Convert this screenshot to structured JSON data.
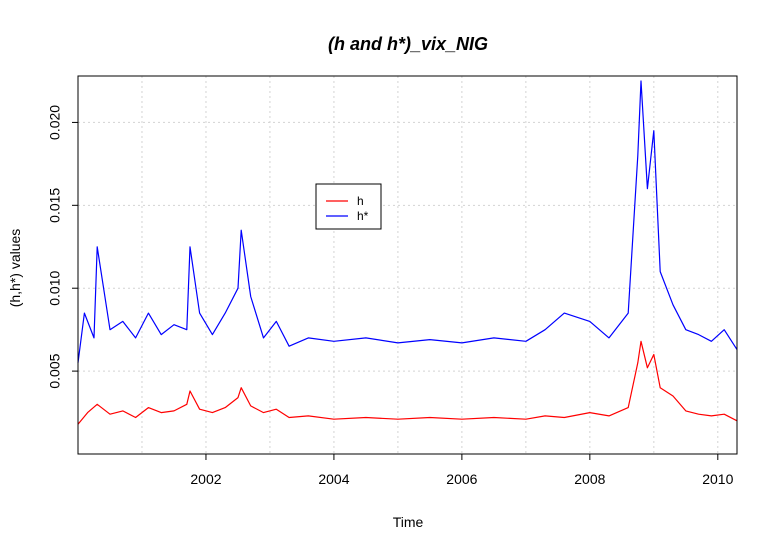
{
  "chart_data": {
    "type": "line",
    "title": "(h and h*)_vix_NIG",
    "xlabel": "Time",
    "ylabel": "(h,h*) values",
    "xlim": [
      2000.0,
      2010.3
    ],
    "ylim": [
      0.0,
      0.0228
    ],
    "x_ticks": [
      2002,
      2004,
      2006,
      2008,
      2010
    ],
    "y_ticks": [
      0.005,
      0.01,
      0.015,
      0.02
    ],
    "y_tick_labels": [
      "0.005",
      "0.010",
      "0.015",
      "0.020"
    ],
    "x_tick_labels": [
      "2002",
      "2004",
      "2006",
      "2008",
      "2010"
    ],
    "grid": true,
    "legend_position": "upper-left-center",
    "series": [
      {
        "name": "h",
        "color": "#ff0000",
        "x": [
          2000.0,
          2000.15,
          2000.3,
          2000.5,
          2000.7,
          2000.9,
          2001.1,
          2001.3,
          2001.5,
          2001.7,
          2001.75,
          2001.9,
          2002.1,
          2002.3,
          2002.5,
          2002.55,
          2002.7,
          2002.9,
          2003.1,
          2003.3,
          2003.6,
          2004.0,
          2004.5,
          2005.0,
          2005.5,
          2006.0,
          2006.5,
          2007.0,
          2007.3,
          2007.6,
          2008.0,
          2008.3,
          2008.6,
          2008.75,
          2008.8,
          2008.9,
          2009.0,
          2009.1,
          2009.3,
          2009.5,
          2009.7,
          2009.9,
          2010.1,
          2010.3
        ],
        "y": [
          0.0018,
          0.0025,
          0.003,
          0.0024,
          0.0026,
          0.0022,
          0.0028,
          0.0025,
          0.0026,
          0.003,
          0.0038,
          0.0027,
          0.0025,
          0.0028,
          0.0034,
          0.004,
          0.0029,
          0.0025,
          0.0027,
          0.0022,
          0.0023,
          0.0021,
          0.0022,
          0.0021,
          0.0022,
          0.0021,
          0.0022,
          0.0021,
          0.0023,
          0.0022,
          0.0025,
          0.0023,
          0.0028,
          0.0055,
          0.0068,
          0.0052,
          0.006,
          0.004,
          0.0035,
          0.0026,
          0.0024,
          0.0023,
          0.0024,
          0.002
        ]
      },
      {
        "name": "h*",
        "color": "#0000ff",
        "x": [
          2000.0,
          2000.1,
          2000.25,
          2000.3,
          2000.5,
          2000.7,
          2000.9,
          2001.1,
          2001.3,
          2001.5,
          2001.7,
          2001.75,
          2001.9,
          2002.1,
          2002.3,
          2002.5,
          2002.55,
          2002.7,
          2002.9,
          2003.1,
          2003.3,
          2003.6,
          2004.0,
          2004.5,
          2005.0,
          2005.5,
          2006.0,
          2006.5,
          2007.0,
          2007.3,
          2007.6,
          2008.0,
          2008.3,
          2008.6,
          2008.75,
          2008.8,
          2008.9,
          2009.0,
          2009.1,
          2009.3,
          2009.5,
          2009.7,
          2009.9,
          2010.1,
          2010.3
        ],
        "y": [
          0.0055,
          0.0085,
          0.007,
          0.0125,
          0.0075,
          0.008,
          0.007,
          0.0085,
          0.0072,
          0.0078,
          0.0075,
          0.0125,
          0.0085,
          0.0072,
          0.0085,
          0.01,
          0.0135,
          0.0095,
          0.007,
          0.008,
          0.0065,
          0.007,
          0.0068,
          0.007,
          0.0067,
          0.0069,
          0.0067,
          0.007,
          0.0068,
          0.0075,
          0.0085,
          0.008,
          0.007,
          0.0085,
          0.018,
          0.0225,
          0.016,
          0.0195,
          0.011,
          0.009,
          0.0075,
          0.0072,
          0.0068,
          0.0075,
          0.0063
        ]
      }
    ]
  }
}
